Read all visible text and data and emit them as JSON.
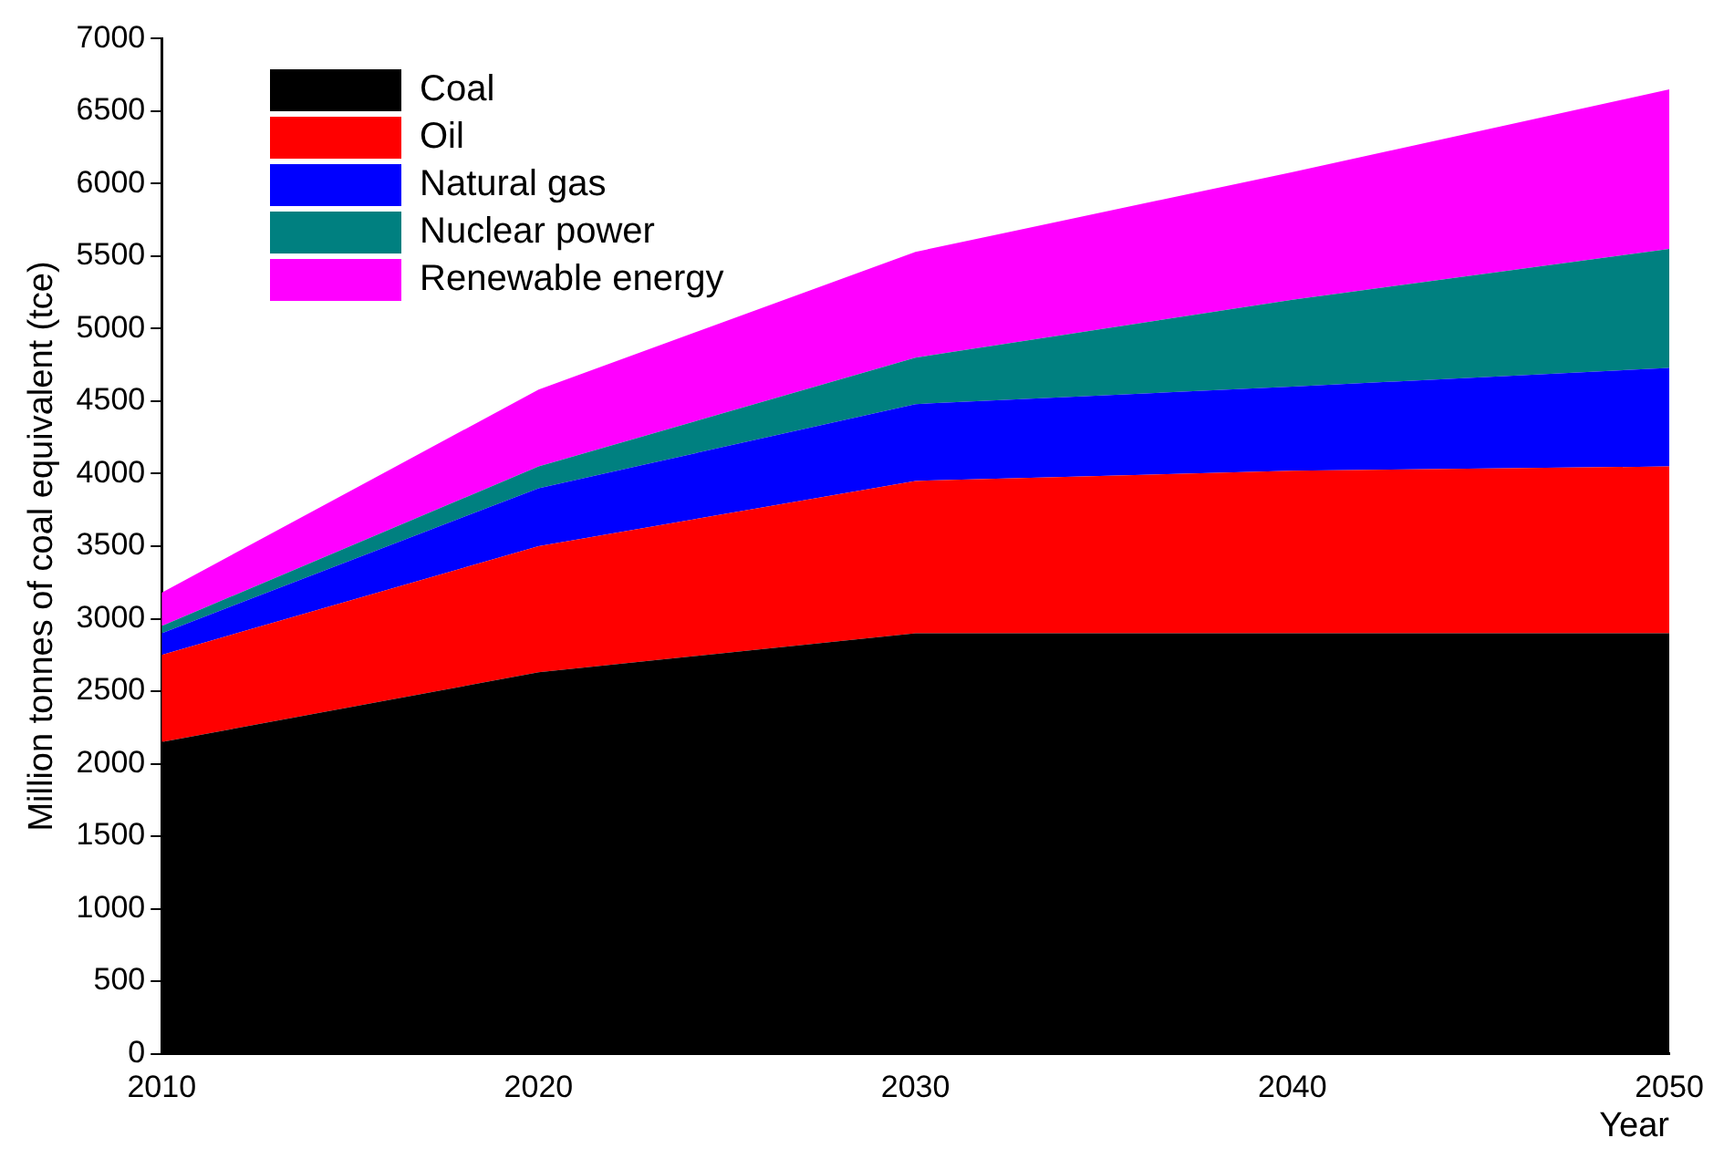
{
  "chart_data": {
    "type": "area",
    "stacked": true,
    "xlabel": "Year",
    "ylabel": "Million tonnes of coal equivalent (tce)",
    "x": [
      2010,
      2020,
      2030,
      2040,
      2050
    ],
    "series": [
      {
        "name": "Coal",
        "color": "#000000",
        "values": [
          2150,
          2630,
          2900,
          2900,
          2900
        ]
      },
      {
        "name": "Oil",
        "color": "#ff0000",
        "values": [
          600,
          870,
          1050,
          1120,
          1150
        ]
      },
      {
        "name": "Natural gas",
        "color": "#0000ff",
        "values": [
          150,
          400,
          530,
          580,
          680
        ]
      },
      {
        "name": "Nuclear power",
        "color": "#008080",
        "values": [
          50,
          150,
          320,
          600,
          820
        ]
      },
      {
        "name": "Renewable energy",
        "color": "#ff00ff",
        "values": [
          230,
          530,
          730,
          880,
          1100
        ]
      }
    ],
    "xlim": [
      2010,
      2050
    ],
    "xticks": [
      2010,
      2020,
      2030,
      2040,
      2050
    ],
    "ylim": [
      0,
      7000
    ],
    "yticks": [
      0,
      500,
      1000,
      1500,
      2000,
      2500,
      3000,
      3500,
      4000,
      4500,
      5000,
      5500,
      6000,
      6500,
      7000
    ],
    "grid": false,
    "legend": "top left"
  }
}
